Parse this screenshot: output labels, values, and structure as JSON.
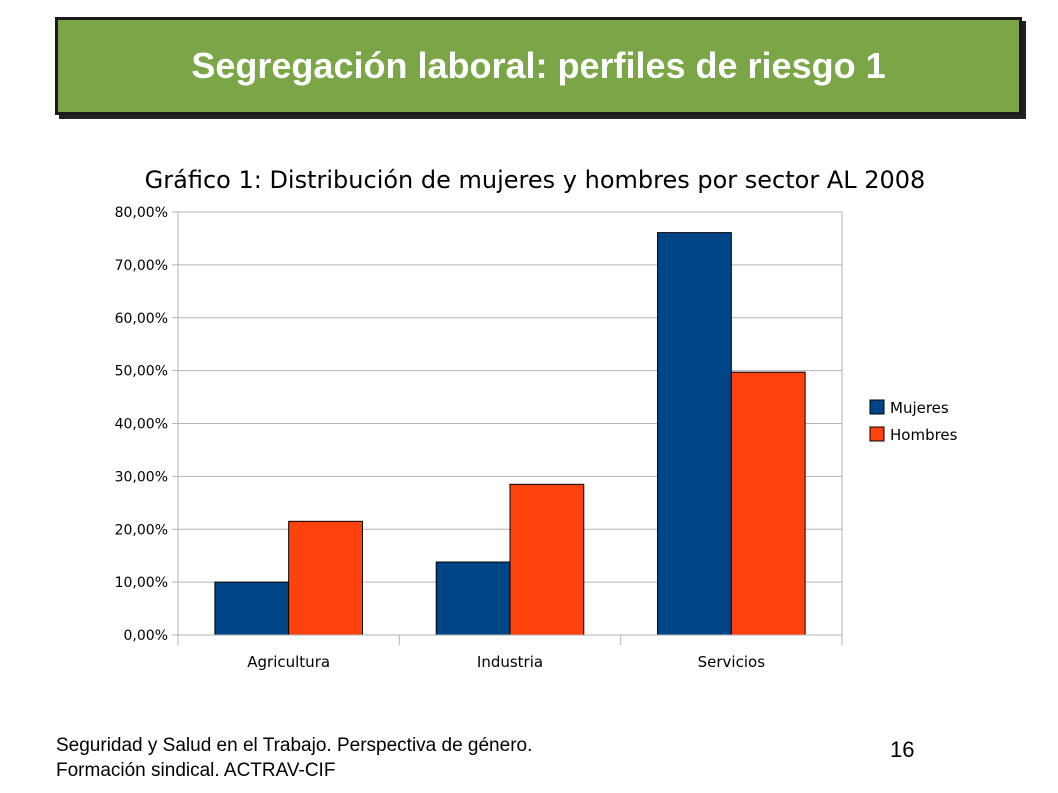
{
  "slide": {
    "title": "Segregación laboral: perfiles de riesgo 1",
    "footer_line1": "Seguridad y Salud en el Trabajo. Perspectiva de género.",
    "footer_line2": "Formación sindical. ACTRAV-CIF",
    "page_number": "16",
    "banner_color": "#7aa648"
  },
  "chart_data": {
    "type": "bar",
    "title": "Gráfico 1: Distribución de mujeres y hombres por sector AL 2008",
    "categories": [
      "Agricultura",
      "Industria",
      "Servicios"
    ],
    "series": [
      {
        "name": "Mujeres",
        "values": [
          10.0,
          13.8,
          76.1
        ],
        "color": "#004586"
      },
      {
        "name": "Hombres",
        "values": [
          21.5,
          28.5,
          49.7
        ],
        "color": "#ff420e"
      }
    ],
    "ylim": [
      0,
      80
    ],
    "yticks": [
      "0,00%",
      "10,00%",
      "20,00%",
      "30,00%",
      "40,00%",
      "50,00%",
      "60,00%",
      "70,00%",
      "80,00%"
    ],
    "grid": true,
    "legend_position": "right"
  }
}
